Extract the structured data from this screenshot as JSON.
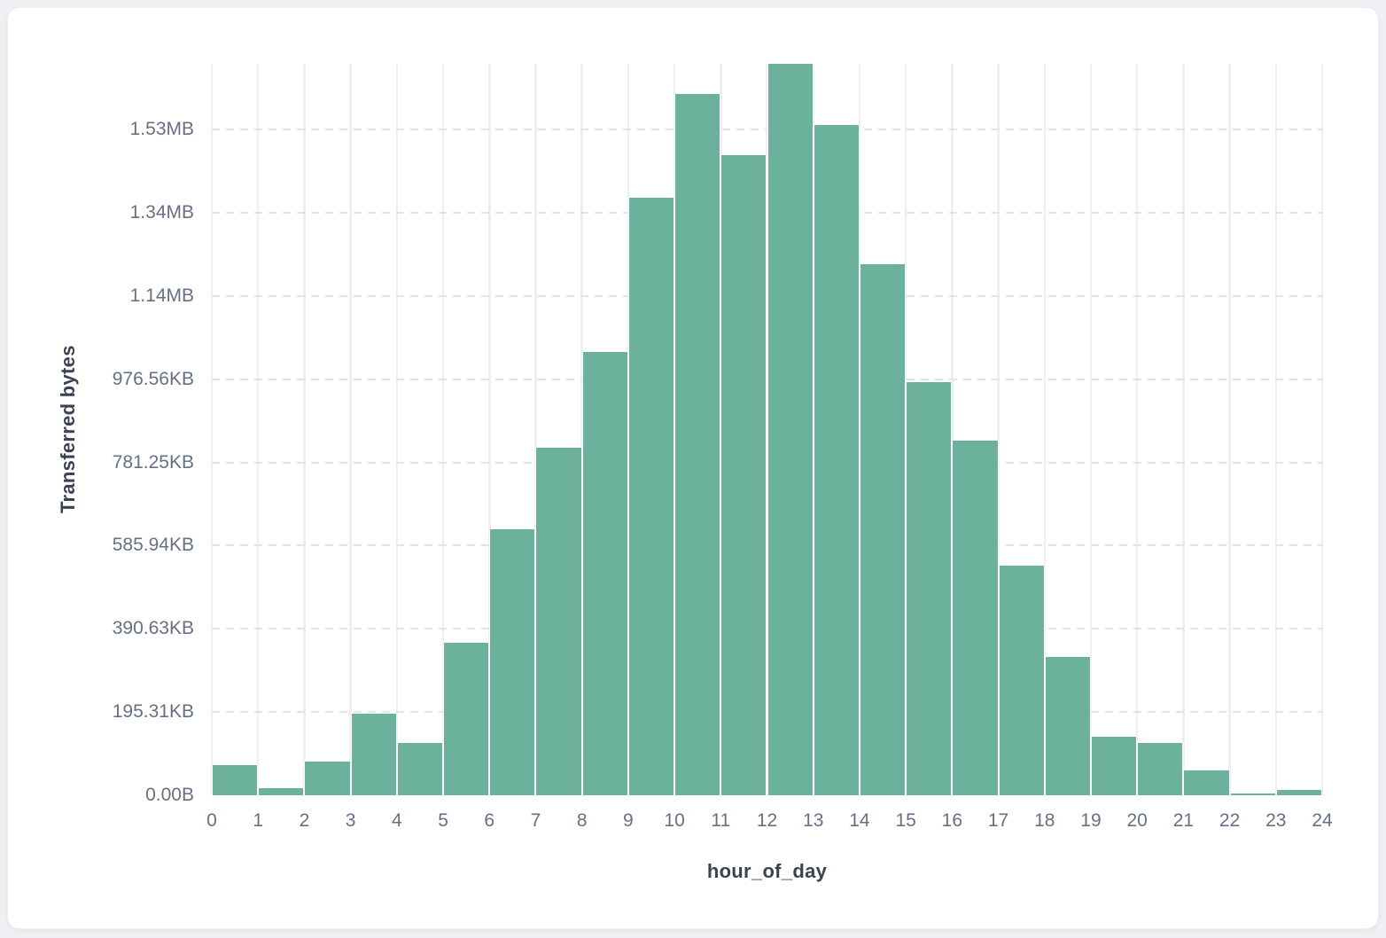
{
  "page": {
    "background_color": "#eef0f3"
  },
  "card": {
    "background_color": "#ffffff"
  },
  "chart_data": {
    "type": "bar",
    "title": "",
    "xlabel": "hour_of_day",
    "ylabel": "Transferred bytes",
    "units": "bytes",
    "bar_color": "#6cb19b",
    "grid": true,
    "legend": false,
    "xlim": [
      0,
      24
    ],
    "ylim": [
      0,
      1758000
    ],
    "x_ticks": [
      "0",
      "1",
      "2",
      "3",
      "4",
      "5",
      "6",
      "7",
      "8",
      "9",
      "10",
      "11",
      "12",
      "13",
      "14",
      "15",
      "16",
      "17",
      "18",
      "19",
      "20",
      "21",
      "22",
      "23",
      "24"
    ],
    "y_ticks": [
      {
        "value": 0,
        "label": "0.00B"
      },
      {
        "value": 200000,
        "label": "195.31KB"
      },
      {
        "value": 400000,
        "label": "390.63KB"
      },
      {
        "value": 600000,
        "label": "585.94KB"
      },
      {
        "value": 800000,
        "label": "781.25KB"
      },
      {
        "value": 1000000,
        "label": "976.56KB"
      },
      {
        "value": 1200000,
        "label": "1.14MB"
      },
      {
        "value": 1400000,
        "label": "1.34MB"
      },
      {
        "value": 1600000,
        "label": "1.53MB"
      }
    ],
    "categories": [
      0,
      1,
      2,
      3,
      4,
      5,
      6,
      7,
      8,
      9,
      10,
      11,
      12,
      13,
      14,
      15,
      16,
      17,
      18,
      19,
      20,
      21,
      22,
      23
    ],
    "values": [
      72000,
      17000,
      80000,
      196000,
      126000,
      367000,
      640000,
      836000,
      1065000,
      1436000,
      1685000,
      1538000,
      1758000,
      1610000,
      1276000,
      992000,
      853000,
      552000,
      333000,
      141000,
      126000,
      59000,
      4500,
      13000
    ]
  }
}
